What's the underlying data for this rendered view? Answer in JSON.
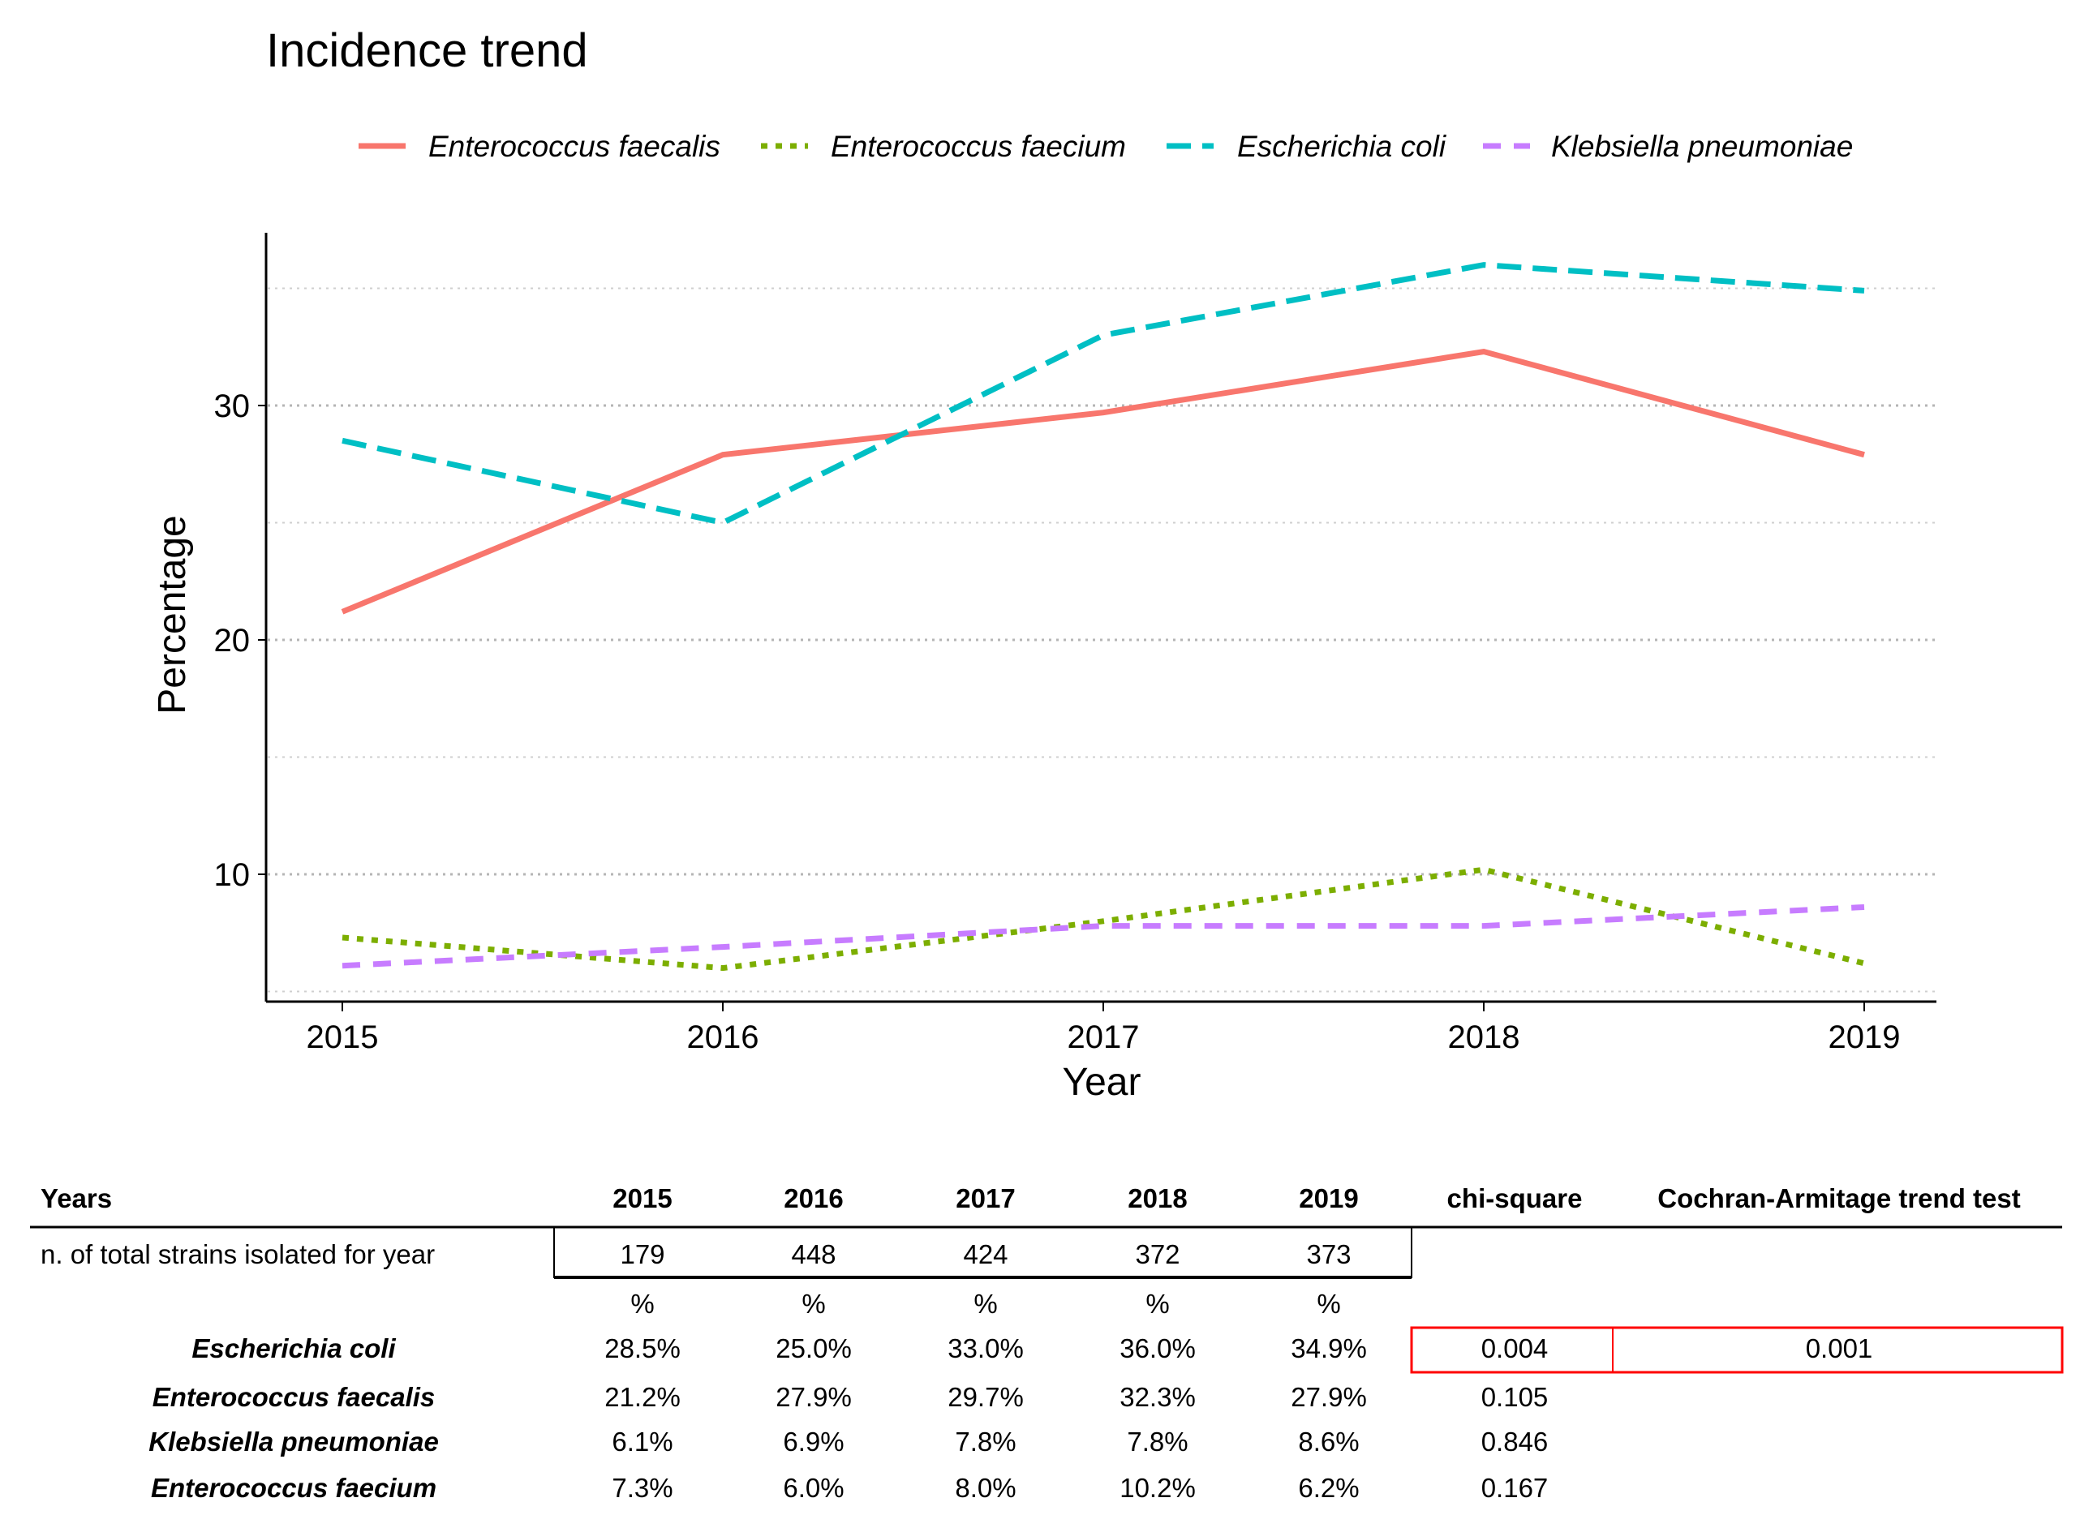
{
  "chart_data": {
    "type": "line",
    "title": "Incidence trend",
    "xlabel": "Year",
    "ylabel": "Percentage",
    "x": [
      2015,
      2016,
      2017,
      2018,
      2019
    ],
    "x_ticks": [
      "2015",
      "2016",
      "2017",
      "2018",
      "2019"
    ],
    "y_ticks": [
      10,
      20,
      30
    ],
    "ylim": [
      4.6,
      37.4
    ],
    "grid": "horizontal dotted",
    "legend_position": "top",
    "series": [
      {
        "name": "Enterococcus faecalis",
        "values": [
          21.2,
          27.9,
          29.7,
          32.3,
          27.9
        ],
        "color": "#F8766D",
        "linestyle": "solid"
      },
      {
        "name": "Enterococcus faecium",
        "values": [
          7.3,
          6.0,
          8.0,
          10.2,
          6.2
        ],
        "color": "#7CAE00",
        "linestyle": "dotted"
      },
      {
        "name": "Escherichia coli",
        "values": [
          28.5,
          25.0,
          33.0,
          36.0,
          34.9
        ],
        "color": "#00BFC4",
        "linestyle": "longdash"
      },
      {
        "name": "Klebsiella pneumoniae",
        "values": [
          6.1,
          6.9,
          7.8,
          7.8,
          8.6
        ],
        "color": "#C77CFF",
        "linestyle": "dashed"
      }
    ]
  },
  "table": {
    "headers": [
      "Years",
      "2015",
      "2016",
      "2017",
      "2018",
      "2019",
      "chi-square",
      "Cochran-Armitage trend test"
    ],
    "totals_label": "n. of total strains isolated for year",
    "totals": [
      "179",
      "448",
      "424",
      "372",
      "373"
    ],
    "units": [
      "%",
      "%",
      "%",
      "%",
      "%"
    ],
    "rows": [
      {
        "species": "Escherichia coli",
        "values": [
          "28.5%",
          "25.0%",
          "33.0%",
          "36.0%",
          "34.9%"
        ],
        "chi": "0.004",
        "ca": "0.001"
      },
      {
        "species": "Enterococcus faecalis",
        "values": [
          "21.2%",
          "27.9%",
          "29.7%",
          "32.3%",
          "27.9%"
        ],
        "chi": "0.105",
        "ca": ""
      },
      {
        "species": "Klebsiella pneumoniae",
        "values": [
          "6.1%",
          "6.9%",
          "7.8%",
          "7.8%",
          "8.6%"
        ],
        "chi": "0.846",
        "ca": ""
      },
      {
        "species": "Enterococcus faecium",
        "values": [
          "7.3%",
          "6.0%",
          "8.0%",
          "10.2%",
          "6.2%"
        ],
        "chi": "0.167",
        "ca": ""
      }
    ],
    "highlight_color": "#FF0000"
  }
}
